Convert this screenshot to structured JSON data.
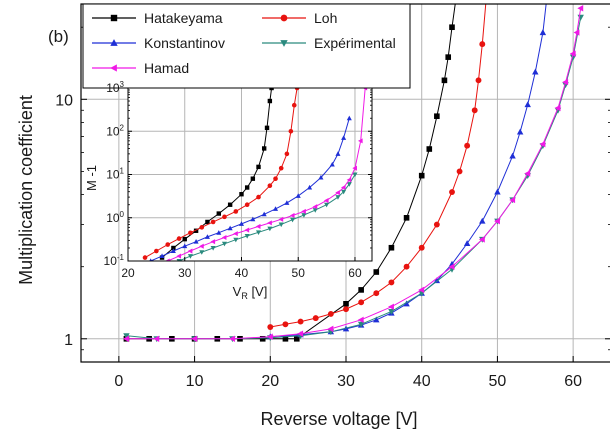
{
  "chart_data": [
    {
      "type": "scatter",
      "panel_label": "(b)",
      "xlabel": "Reverse voltage [V]",
      "ylabel": "Multiplication coefficient",
      "xlim": [
        -5,
        65
      ],
      "ylim": [
        0.8,
        25
      ],
      "yscale": "log",
      "x_ticks": [
        0,
        10,
        20,
        30,
        40,
        50,
        60
      ],
      "y_ticks": [
        1,
        10
      ],
      "grid": true,
      "legend_position": "top",
      "series": [
        {
          "name": "Hatakeyama",
          "color": "#000000",
          "marker": "square",
          "x": [
            1,
            4,
            7,
            10,
            13,
            16,
            19,
            22,
            23.5,
            30,
            32,
            34,
            36,
            38,
            40,
            41,
            42,
            43,
            43.5,
            44,
            44.5
          ],
          "y": [
            1,
            1,
            1,
            1,
            1,
            1,
            1,
            1,
            1,
            1.4,
            1.6,
            1.9,
            2.4,
            3.2,
            4.8,
            6.2,
            8.5,
            12,
            15,
            20,
            26
          ]
        },
        {
          "name": "Loh",
          "color": "#e8130f",
          "marker": "circle",
          "x": [
            20,
            22,
            24,
            26,
            28,
            30,
            32,
            34,
            36,
            38,
            40,
            42,
            44,
            45,
            46,
            47,
            47.5,
            48,
            48.5
          ],
          "y": [
            1.12,
            1.15,
            1.18,
            1.22,
            1.27,
            1.33,
            1.42,
            1.55,
            1.72,
            2.0,
            2.4,
            3.0,
            4.1,
            5.0,
            6.4,
            9.0,
            12,
            17,
            26
          ]
        },
        {
          "name": "Konstantinov",
          "color": "#1f2fd6",
          "marker": "triangle-up",
          "x": [
            20,
            24,
            28,
            30,
            32,
            34,
            36,
            38,
            40,
            42,
            44,
            46,
            48,
            50,
            52,
            53,
            54,
            55,
            56,
            56.5
          ],
          "y": [
            1.02,
            1.04,
            1.07,
            1.1,
            1.14,
            1.2,
            1.28,
            1.4,
            1.55,
            1.75,
            2.05,
            2.5,
            3.1,
            4.1,
            5.8,
            7.3,
            9.5,
            13,
            19,
            26
          ]
        },
        {
          "name": "Expérimental",
          "color": "#2a8a7e",
          "marker": "triangle-down",
          "x": [
            1,
            5,
            10,
            15,
            20,
            24,
            28,
            32,
            36,
            40,
            44,
            48,
            50,
            52,
            54,
            56,
            58,
            59,
            60,
            61
          ],
          "y": [
            1.03,
            1.0,
            1.0,
            1.0,
            1.01,
            1.03,
            1.07,
            1.15,
            1.3,
            1.55,
            1.95,
            2.6,
            3.1,
            3.8,
            4.8,
            6.4,
            9.0,
            11.5,
            15,
            22
          ]
        },
        {
          "name": "Hamad",
          "color": "#f019e6",
          "marker": "triangle-left",
          "x": [
            1,
            5,
            10,
            15,
            20,
            24,
            28,
            32,
            36,
            40,
            44,
            48,
            50,
            52,
            54,
            56,
            58,
            59,
            60,
            60.5,
            61
          ],
          "y": [
            1.0,
            1.0,
            1.0,
            1.0,
            1.02,
            1.05,
            1.1,
            1.2,
            1.36,
            1.6,
            2.0,
            2.6,
            3.1,
            3.8,
            4.9,
            6.5,
            9.2,
            11.8,
            15.5,
            19,
            24
          ]
        }
      ]
    },
    {
      "type": "scatter",
      "role": "inset",
      "xlabel": "V",
      "xlabel_sub": "R",
      "xlabel_unit": " [V]",
      "ylabel": "M -1",
      "xlim": [
        20,
        63
      ],
      "ylim": [
        0.1,
        1000
      ],
      "yscale": "log",
      "x_ticks": [
        20,
        30,
        40,
        50,
        60
      ],
      "y_ticks": [
        0.1,
        1,
        10,
        100,
        1000
      ],
      "y_tick_labels": [
        {
          "base": "10",
          "exp": "-1"
        },
        {
          "base": "10",
          "exp": "0"
        },
        {
          "base": "10",
          "exp": "1"
        },
        {
          "base": "10",
          "exp": "2"
        },
        {
          "base": "10",
          "exp": "3"
        }
      ],
      "grid": true,
      "series": [
        {
          "name": "Hatakeyama",
          "color": "#000000",
          "marker": "square",
          "x": [
            26,
            28,
            30,
            32,
            34,
            36,
            38,
            40,
            41,
            42,
            43,
            44,
            44.5,
            45,
            45.3
          ],
          "y": [
            0.12,
            0.2,
            0.32,
            0.5,
            0.8,
            1.25,
            2.0,
            3.5,
            5.0,
            8.0,
            15,
            40,
            120,
            500,
            1000
          ]
        },
        {
          "name": "Loh",
          "color": "#e8130f",
          "marker": "circle",
          "x": [
            23,
            25,
            27,
            29,
            31,
            33,
            35,
            37,
            39,
            41,
            43,
            45,
            46,
            47,
            48,
            48.7,
            49.3,
            49.8
          ],
          "y": [
            0.12,
            0.17,
            0.24,
            0.33,
            0.45,
            0.6,
            0.8,
            1.05,
            1.4,
            2.0,
            3.0,
            5.5,
            8.0,
            14,
            30,
            100,
            400,
            1000
          ]
        },
        {
          "name": "Konstantinov",
          "color": "#1f2fd6",
          "marker": "triangle-up",
          "x": [
            24,
            26,
            28,
            30,
            32,
            34,
            36,
            38,
            40,
            42,
            44,
            46,
            48,
            50,
            52,
            54,
            56,
            57,
            58,
            59
          ],
          "y": [
            0.1,
            0.13,
            0.17,
            0.22,
            0.28,
            0.36,
            0.45,
            0.57,
            0.72,
            0.92,
            1.2,
            1.6,
            2.2,
            3.2,
            5.0,
            8.5,
            17,
            30,
            70,
            200
          ]
        },
        {
          "name": "Expérimental",
          "color": "#2a8a7e",
          "marker": "triangle-down",
          "x": [
            29,
            31,
            33,
            35,
            37,
            39,
            41,
            43,
            45,
            47,
            49,
            51,
            53,
            55,
            57,
            58,
            59,
            60
          ],
          "y": [
            0.1,
            0.13,
            0.16,
            0.2,
            0.25,
            0.31,
            0.38,
            0.46,
            0.56,
            0.7,
            0.9,
            1.15,
            1.5,
            2.0,
            3.0,
            4.0,
            6.0,
            10
          ]
        },
        {
          "name": "Hamad",
          "color": "#f019e6",
          "marker": "triangle-left",
          "x": [
            27,
            29,
            31,
            33,
            35,
            37,
            39,
            41,
            43,
            45,
            47,
            49,
            51,
            53,
            55,
            57,
            58,
            59,
            60,
            61,
            61.8
          ],
          "y": [
            0.1,
            0.13,
            0.17,
            0.22,
            0.28,
            0.35,
            0.43,
            0.52,
            0.63,
            0.76,
            0.92,
            1.13,
            1.4,
            1.8,
            2.5,
            3.8,
            5.0,
            7.5,
            14,
            60,
            1000
          ]
        }
      ]
    }
  ]
}
